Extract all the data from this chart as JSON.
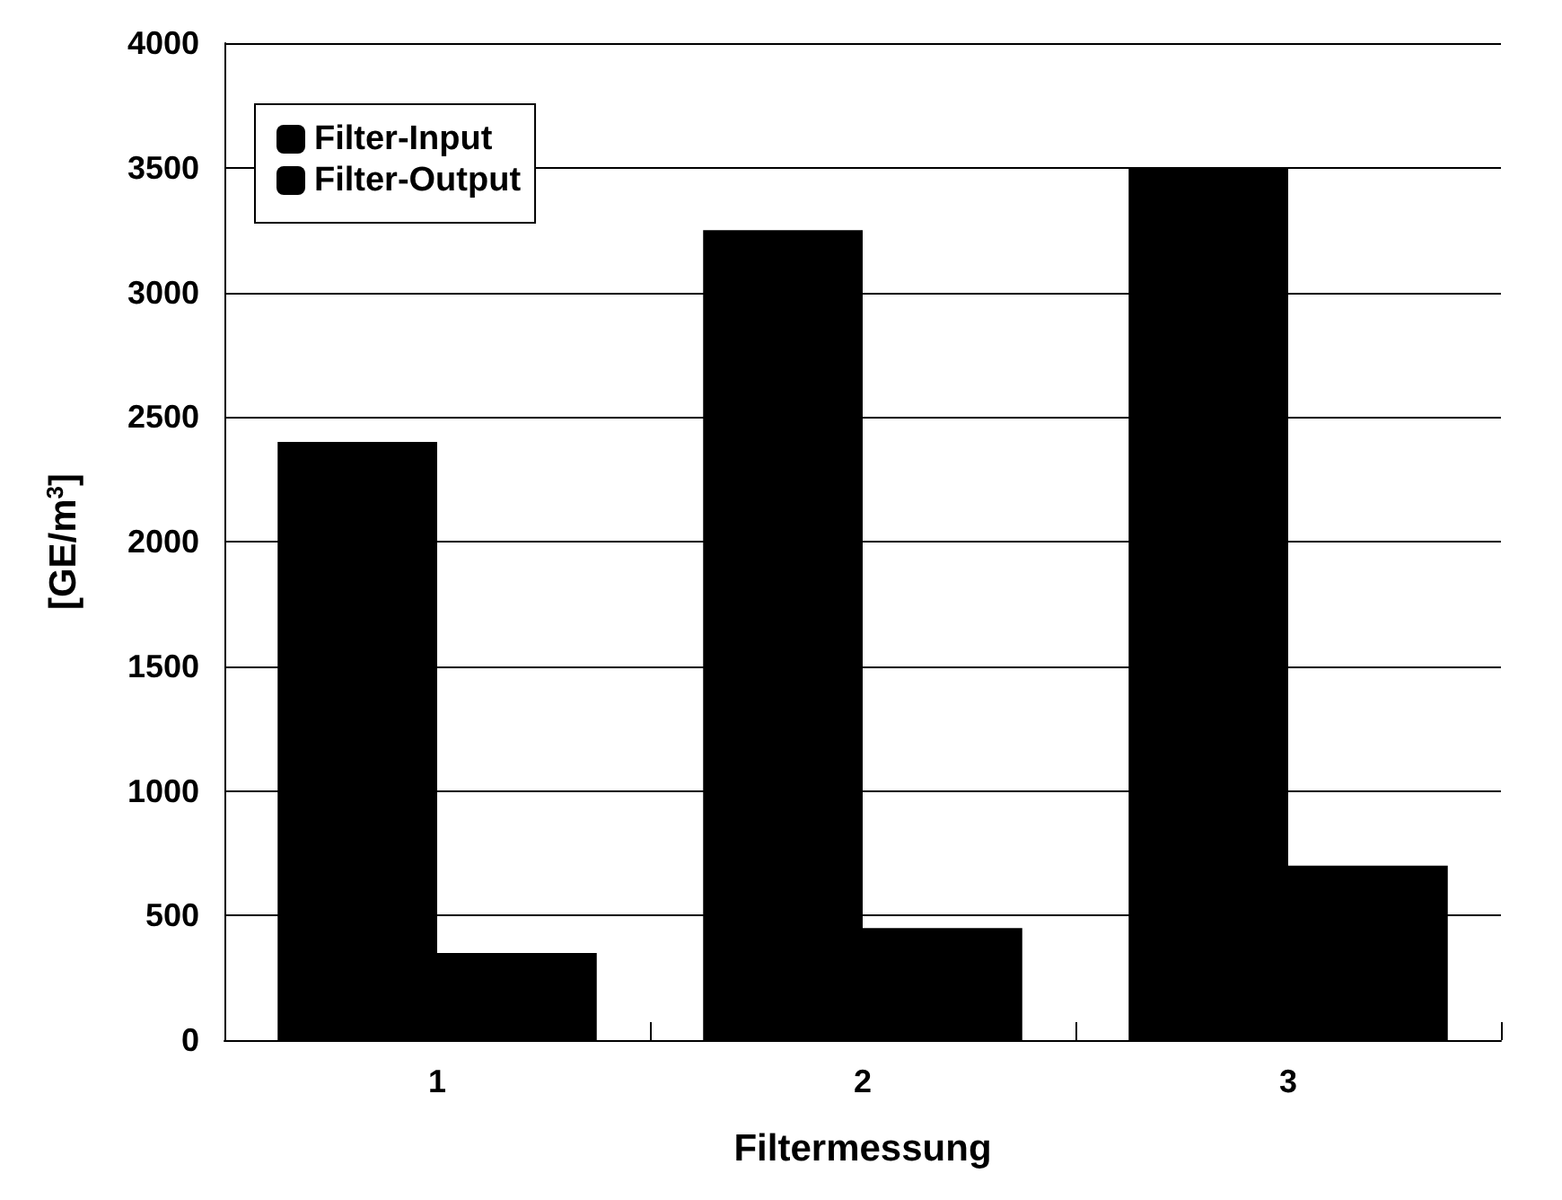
{
  "chart_data": {
    "type": "bar",
    "xlabel": "Filtermessung",
    "ylabel": "[GE/m$^{3}$]",
    "categories": [
      "1",
      "2",
      "3"
    ],
    "series": [
      {
        "name": "Filter-Input",
        "color": "#000000",
        "values": [
          2400,
          3250,
          3500
        ]
      },
      {
        "name": "Filter-Output",
        "color": "#000000",
        "values": [
          350,
          450,
          700
        ]
      }
    ],
    "ylim": [
      0,
      4000
    ],
    "yticks": [
      0,
      500,
      1000,
      1500,
      2000,
      2500,
      3000,
      3500,
      4000
    ],
    "grid": "y",
    "legend": "top left"
  }
}
